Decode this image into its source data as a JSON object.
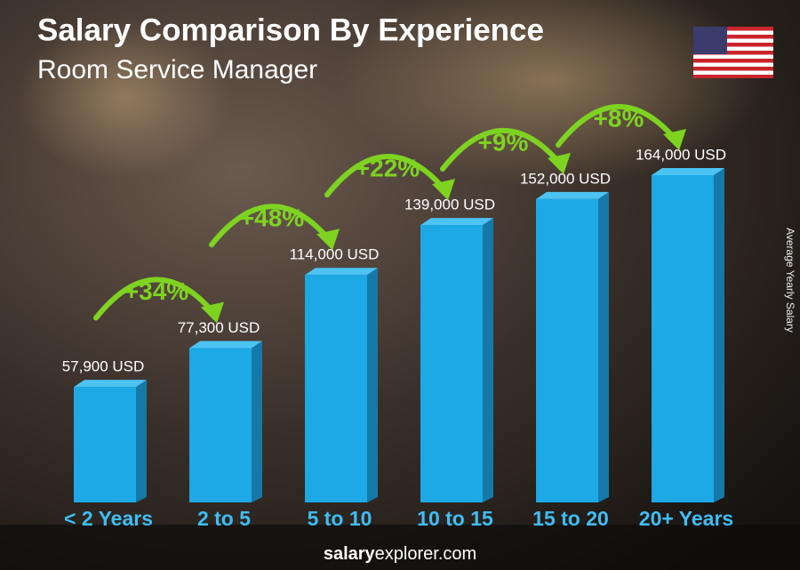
{
  "chart_data": {
    "type": "bar3d",
    "title": "Salary Comparison By Experience",
    "subtitle": "Room Service Manager",
    "y_label": "Average Yearly Salary",
    "categories": [
      "< 2 Years",
      "2 to 5",
      "5 to 10",
      "10 to 15",
      "15 to 20",
      "20+ Years"
    ],
    "values": [
      57900,
      77300,
      114000,
      139000,
      152000,
      164000
    ],
    "value_labels": [
      "57,900 USD",
      "77,300 USD",
      "114,000 USD",
      "139,000 USD",
      "152,000 USD",
      "164,000 USD"
    ],
    "changes": [
      "+34%",
      "+48%",
      "+22%",
      "+9%",
      "+8%"
    ],
    "color": "#1da8e6",
    "change_color": "#7ed321"
  },
  "footer": [
    "salary",
    "explorer.com"
  ]
}
